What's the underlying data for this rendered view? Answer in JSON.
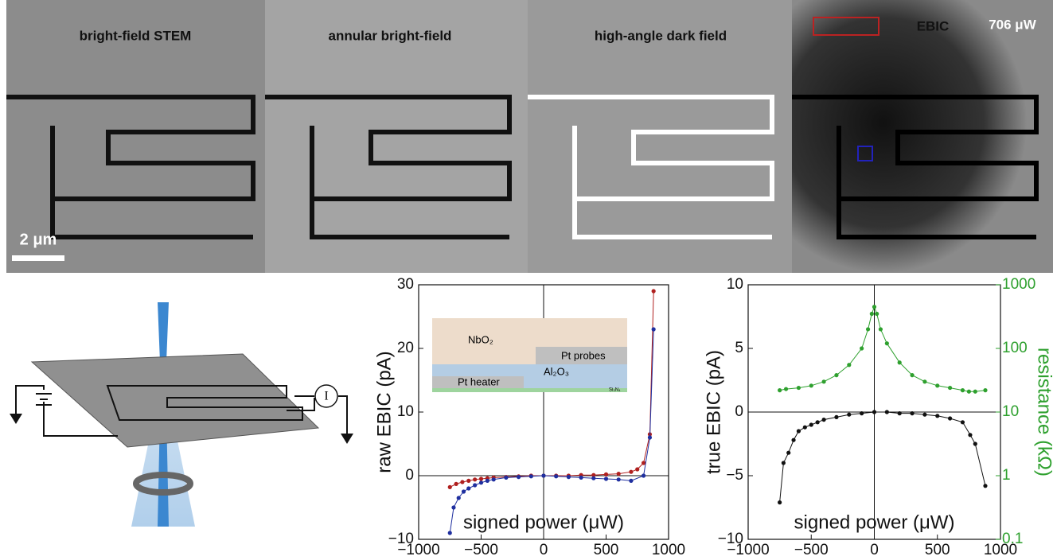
{
  "micrographs": [
    {
      "label": "bright-field STEM"
    },
    {
      "label": "annular bright-field"
    },
    {
      "label": "high-angle dark field"
    },
    {
      "label": "EBIC",
      "power": "706 μW"
    }
  ],
  "scale_bar": "2 μm",
  "schematic": {
    "meter": "I"
  },
  "inset_labels": [
    "NbO₂",
    "Pt probes",
    "Al₂O₃",
    "Pt heater",
    "Si₃N₄"
  ],
  "chart_data": [
    {
      "type": "line",
      "ylabel": "raw EBIC (pA)",
      "xlabel": "signed power (μW)",
      "xlim": [
        -1000,
        1000
      ],
      "ylim": [
        -10,
        30
      ],
      "xticks": [
        {
          "value": -1000,
          "label": "−1000"
        },
        {
          "value": -500,
          "label": "−500"
        },
        0,
        500,
        1000
      ],
      "yticks": [
        {
          "value": -10,
          "label": "−10"
        },
        0,
        10,
        20,
        30
      ],
      "series": [
        {
          "color": "#b0201f",
          "x": [
            -750,
            -700,
            -650,
            -600,
            -550,
            -500,
            -450,
            -400,
            -300,
            -200,
            -100,
            0,
            100,
            200,
            300,
            400,
            500,
            600,
            700,
            750,
            800,
            850,
            880
          ],
          "values": [
            -1.8,
            -1.3,
            -1,
            -0.8,
            -0.6,
            -0.5,
            -0.4,
            -0.3,
            -0.2,
            -0.1,
            0,
            0,
            0,
            0,
            0.1,
            0.1,
            0.2,
            0.3,
            0.6,
            1,
            2,
            6.5,
            29
          ]
        },
        {
          "color": "#1f2f9f",
          "x": [
            -750,
            -720,
            -680,
            -640,
            -600,
            -550,
            -500,
            -450,
            -400,
            -300,
            -200,
            -100,
            0,
            100,
            200,
            300,
            400,
            500,
            600,
            700,
            800,
            850,
            880
          ],
          "values": [
            -9,
            -5,
            -3.5,
            -2.5,
            -2,
            -1.5,
            -1.1,
            -0.8,
            -0.6,
            -0.3,
            -0.2,
            -0.1,
            0,
            -0.1,
            -0.2,
            -0.3,
            -0.4,
            -0.5,
            -0.6,
            -0.8,
            0,
            6,
            23
          ]
        }
      ]
    },
    {
      "type": "line",
      "ylabel": "true EBIC (pA)",
      "y2label": "resistance (kΩ)",
      "xlabel": "signed power (μW)",
      "xlim": [
        -1000,
        1000
      ],
      "ylim": [
        -10,
        10
      ],
      "y2lim": [
        0.1,
        1000
      ],
      "y2log": true,
      "y2color": "#2ea02e",
      "xticks": [
        {
          "value": -1000,
          "label": "−1000"
        },
        {
          "value": -500,
          "label": "−500"
        },
        0,
        500,
        1000
      ],
      "yticks": [
        {
          "value": -10,
          "label": "−10"
        },
        {
          "value": -5,
          "label": "−5"
        },
        0,
        5,
        10
      ],
      "y2ticks": [
        0.1,
        1,
        10,
        100,
        1000
      ],
      "series": [
        {
          "color": "#111111",
          "x": [
            -750,
            -720,
            -680,
            -640,
            -600,
            -550,
            -500,
            -450,
            -400,
            -300,
            -200,
            -100,
            0,
            100,
            200,
            300,
            400,
            500,
            600,
            700,
            760,
            800,
            880
          ],
          "values": [
            -7.1,
            -4,
            -3.2,
            -2.2,
            -1.5,
            -1.2,
            -1,
            -0.8,
            -0.6,
            -0.4,
            -0.2,
            -0.1,
            0,
            0,
            -0.1,
            -0.1,
            -0.2,
            -0.3,
            -0.5,
            -0.8,
            -1.8,
            -2.5,
            -5.8
          ]
        },
        {
          "color": "#2ea02e",
          "axis": "y2",
          "x": [
            -750,
            -700,
            -600,
            -500,
            -400,
            -300,
            -200,
            -100,
            -50,
            -20,
            0,
            20,
            50,
            100,
            200,
            300,
            400,
            500,
            600,
            700,
            750,
            800,
            880
          ],
          "values": [
            22,
            23,
            24,
            26,
            30,
            38,
            55,
            100,
            200,
            350,
            450,
            350,
            200,
            120,
            60,
            38,
            30,
            26,
            24,
            22,
            21,
            21,
            22
          ]
        }
      ]
    }
  ]
}
